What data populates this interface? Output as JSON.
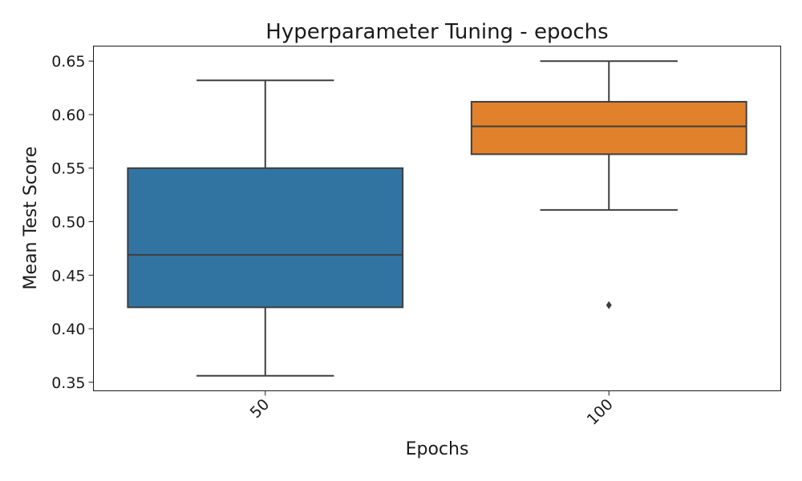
{
  "chart_data": {
    "type": "box",
    "title": "Hyperparameter Tuning - epochs",
    "xlabel": "Epochs",
    "ylabel": "Mean Test Score",
    "ylim": [
      0.342,
      0.664
    ],
    "yticks": [
      0.35,
      0.4,
      0.45,
      0.5,
      0.55,
      0.6,
      0.65
    ],
    "ytick_labels": [
      "0.35",
      "0.40",
      "0.45",
      "0.50",
      "0.55",
      "0.60",
      "0.65"
    ],
    "categories": [
      "50",
      "100"
    ],
    "grid": false,
    "boxes": [
      {
        "category": "50",
        "color": "#3274a1",
        "whisker_low": 0.356,
        "q1": 0.42,
        "median": 0.469,
        "q3": 0.55,
        "whisker_high": 0.632,
        "outliers": []
      },
      {
        "category": "100",
        "color": "#e1812c",
        "whisker_low": 0.511,
        "q1": 0.563,
        "median": 0.589,
        "q3": 0.612,
        "whisker_high": 0.65,
        "outliers": [
          0.422
        ]
      }
    ]
  }
}
